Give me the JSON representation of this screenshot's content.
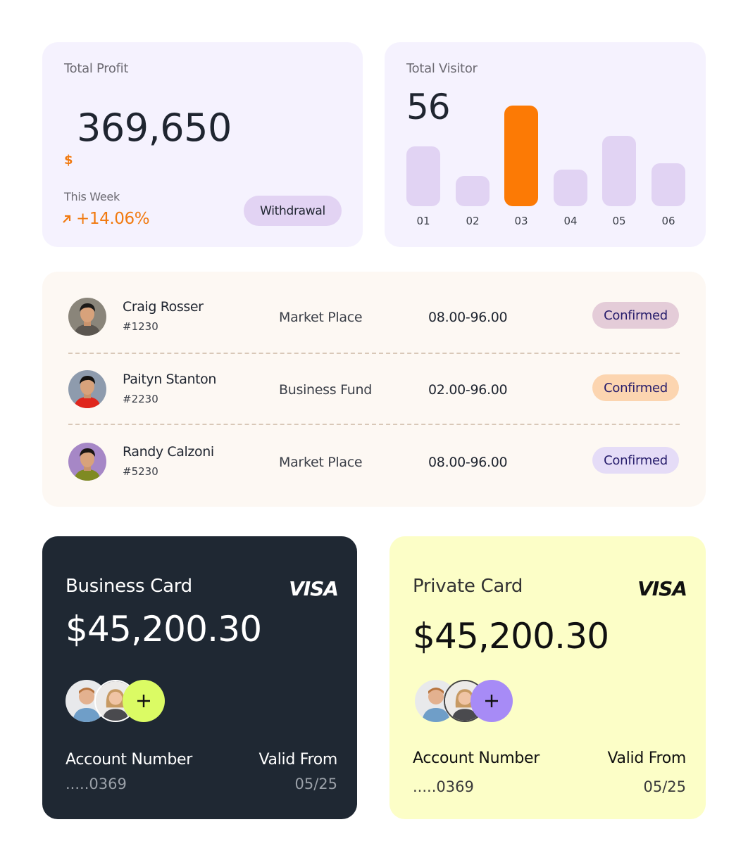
{
  "profit": {
    "title": "Total Profit",
    "currency": "$",
    "amount": "369,650",
    "period_label": "This Week",
    "change": "+14.06%",
    "trend_icon": "arrow-up-right-icon",
    "withdraw_label": "Withdrawal",
    "accent": "#f17a10"
  },
  "visitor": {
    "title": "Total Visitor",
    "count": "56"
  },
  "chart_data": {
    "type": "bar",
    "title": "Total Visitor",
    "categories": [
      "01",
      "02",
      "03",
      "04",
      "05",
      "06"
    ],
    "values": [
      85,
      43,
      143,
      52,
      100,
      61
    ],
    "highlight_index": 2,
    "colors": {
      "default": "#e1d3f3",
      "highlight": "#fc7a05"
    },
    "xlabel": "",
    "ylabel": "",
    "grid": false
  },
  "transactions": [
    {
      "name": "Craig Rosser",
      "id": "#1230",
      "category": "Market Place",
      "time": "08.00-96.00",
      "status": "Confirmed",
      "badge_color": "#e4ccd8",
      "avatar_bg": "#8a857a"
    },
    {
      "name": "Paityn Stanton",
      "id": "#2230",
      "category": "Business Fund",
      "time": "02.00-96.00",
      "status": "Confirmed",
      "badge_color": "#fcd5b0",
      "avatar_bg": "#8e9bad"
    },
    {
      "name": "Randy Calzoni",
      "id": "#5230",
      "category": "Market Place",
      "time": "08.00-96.00",
      "status": "Confirmed",
      "badge_color": "#e5dcf7",
      "avatar_bg": "#a687c6"
    }
  ],
  "cards": [
    {
      "title": "Business Card",
      "brand": "VISA",
      "balance": "$45,200.30",
      "account_label": "Account Number",
      "account": ".....0369",
      "valid_label": "Valid From",
      "valid": "05/25",
      "add_icon": "plus-icon"
    },
    {
      "title": "Private Card",
      "brand": "VISA",
      "balance": "$45,200.30",
      "account_label": "Account Number",
      "account": ".....0369",
      "valid_label": "Valid From",
      "valid": "05/25",
      "add_icon": "plus-icon"
    }
  ]
}
